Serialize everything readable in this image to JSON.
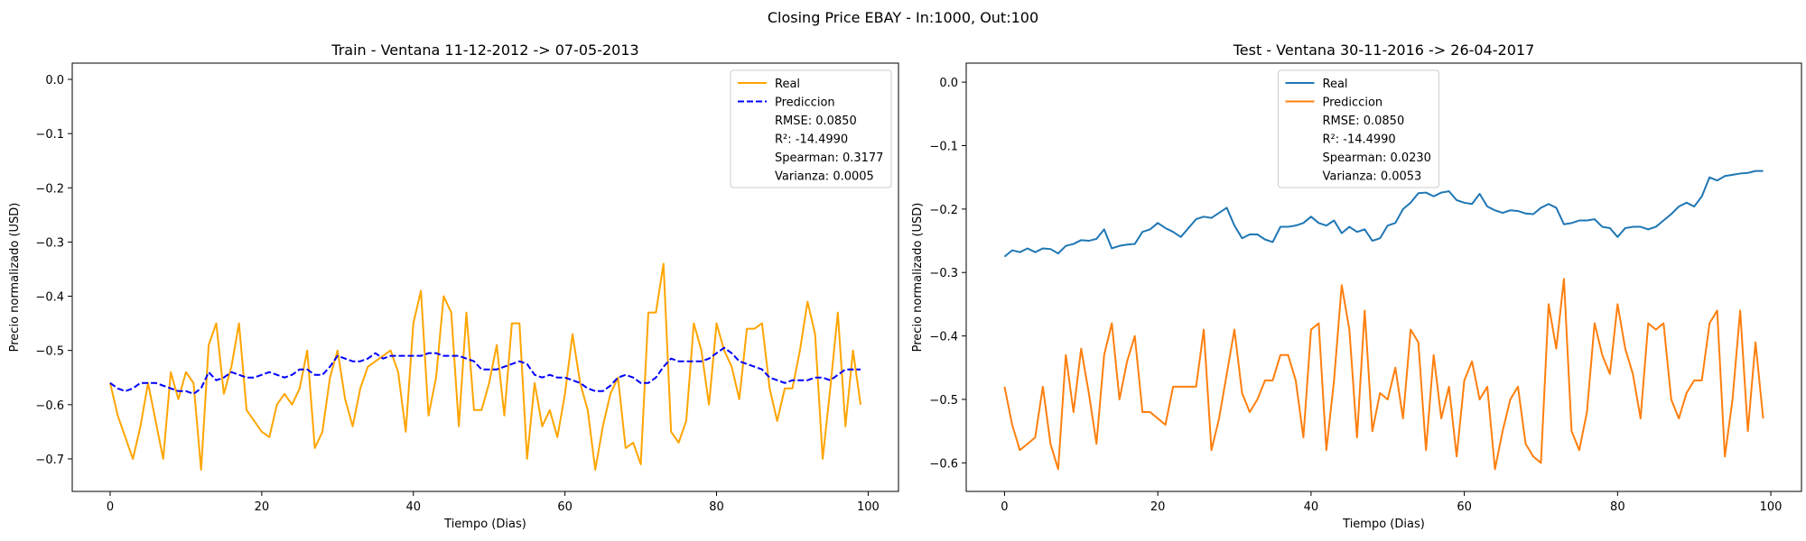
{
  "figure": {
    "suptitle": "Closing Price EBAY - In:1000, Out:100"
  },
  "chart_data": [
    {
      "type": "line",
      "title": "Train - Ventana 11-12-2012 -> 07-05-2013",
      "xlabel": "Tiempo (Dias)",
      "ylabel": "Precio normalizado (USD)",
      "xlim": [
        -5,
        104
      ],
      "ylim": [
        -0.76,
        0.03
      ],
      "xticks": [
        0,
        20,
        40,
        60,
        80,
        100
      ],
      "xtick_labels": [
        "0",
        "20",
        "40",
        "60",
        "80",
        "100"
      ],
      "yticks": [
        0.0,
        -0.1,
        -0.2,
        -0.3,
        -0.4,
        -0.5,
        -0.6,
        -0.7
      ],
      "ytick_labels": [
        "0.0",
        "−0.1",
        "−0.2",
        "−0.3",
        "−0.4",
        "−0.5",
        "−0.6",
        "−0.7"
      ],
      "grid": false,
      "legend_position": "top-right",
      "series": [
        {
          "name": "Real",
          "color": "#FFA500",
          "dash": "solid",
          "values": [
            -0.56,
            -0.62,
            -0.66,
            -0.7,
            -0.64,
            -0.56,
            -0.63,
            -0.7,
            -0.54,
            -0.59,
            -0.54,
            -0.56,
            -0.72,
            -0.49,
            -0.45,
            -0.58,
            -0.53,
            -0.45,
            -0.61,
            -0.63,
            -0.65,
            -0.66,
            -0.6,
            -0.58,
            -0.6,
            -0.57,
            -0.5,
            -0.68,
            -0.65,
            -0.55,
            -0.5,
            -0.59,
            -0.64,
            -0.57,
            -0.53,
            -0.52,
            -0.51,
            -0.5,
            -0.54,
            -0.65,
            -0.45,
            -0.39,
            -0.62,
            -0.55,
            -0.4,
            -0.43,
            -0.64,
            -0.43,
            -0.61,
            -0.61,
            -0.56,
            -0.49,
            -0.62,
            -0.45,
            -0.45,
            -0.7,
            -0.56,
            -0.64,
            -0.61,
            -0.66,
            -0.58,
            -0.47,
            -0.56,
            -0.61,
            -0.72,
            -0.64,
            -0.58,
            -0.55,
            -0.68,
            -0.67,
            -0.71,
            -0.43,
            -0.43,
            -0.34,
            -0.65,
            -0.67,
            -0.63,
            -0.45,
            -0.5,
            -0.6,
            -0.45,
            -0.5,
            -0.53,
            -0.59,
            -0.46,
            -0.46,
            -0.45,
            -0.57,
            -0.63,
            -0.57,
            -0.57,
            -0.5,
            -0.41,
            -0.47,
            -0.7,
            -0.57,
            -0.43,
            -0.64,
            -0.5,
            -0.6
          ]
        },
        {
          "name": "Prediccion",
          "color": "#0000FF",
          "dash": "dashed",
          "values": [
            -0.56,
            -0.57,
            -0.575,
            -0.57,
            -0.56,
            -0.56,
            -0.56,
            -0.565,
            -0.57,
            -0.575,
            -0.575,
            -0.58,
            -0.57,
            -0.54,
            -0.555,
            -0.55,
            -0.54,
            -0.545,
            -0.55,
            -0.55,
            -0.545,
            -0.54,
            -0.545,
            -0.55,
            -0.545,
            -0.535,
            -0.535,
            -0.545,
            -0.545,
            -0.53,
            -0.51,
            -0.515,
            -0.52,
            -0.52,
            -0.515,
            -0.505,
            -0.515,
            -0.51,
            -0.51,
            -0.51,
            -0.51,
            -0.51,
            -0.505,
            -0.505,
            -0.51,
            -0.51,
            -0.51,
            -0.515,
            -0.52,
            -0.535,
            -0.535,
            -0.535,
            -0.53,
            -0.525,
            -0.52,
            -0.525,
            -0.545,
            -0.55,
            -0.545,
            -0.55,
            -0.55,
            -0.555,
            -0.56,
            -0.57,
            -0.575,
            -0.575,
            -0.565,
            -0.55,
            -0.545,
            -0.55,
            -0.56,
            -0.56,
            -0.55,
            -0.53,
            -0.515,
            -0.52,
            -0.52,
            -0.52,
            -0.52,
            -0.515,
            -0.505,
            -0.495,
            -0.505,
            -0.52,
            -0.525,
            -0.53,
            -0.535,
            -0.55,
            -0.555,
            -0.56,
            -0.555,
            -0.555,
            -0.555,
            -0.55,
            -0.55,
            -0.555,
            -0.545,
            -0.535,
            -0.535,
            -0.535
          ]
        }
      ],
      "legend_stats": [
        "RMSE: 0.0850",
        "R²: -14.4990",
        "Spearman: 0.3177",
        "Varianza: 0.0005"
      ]
    },
    {
      "type": "line",
      "title": "Test - Ventana 30-11-2016 -> 26-04-2017",
      "xlabel": "Tiempo (Dias)",
      "ylabel": "Precio normalizado (USD)",
      "xlim": [
        -5,
        104
      ],
      "ylim": [
        -0.645,
        0.03
      ],
      "xticks": [
        0,
        20,
        40,
        60,
        80,
        100
      ],
      "xtick_labels": [
        "0",
        "20",
        "40",
        "60",
        "80",
        "100"
      ],
      "yticks": [
        0.0,
        -0.1,
        -0.2,
        -0.3,
        -0.4,
        -0.5,
        -0.6
      ],
      "ytick_labels": [
        "0.0",
        "−0.1",
        "−0.2",
        "−0.3",
        "−0.4",
        "−0.5",
        "−0.6"
      ],
      "grid": false,
      "legend_position": "upper-center",
      "series": [
        {
          "name": "Real",
          "color": "#1F77B4",
          "dash": "solid",
          "values": [
            -0.275,
            -0.265,
            -0.268,
            -0.262,
            -0.268,
            -0.262,
            -0.263,
            -0.27,
            -0.258,
            -0.255,
            -0.249,
            -0.25,
            -0.247,
            -0.232,
            -0.262,
            -0.258,
            -0.256,
            -0.255,
            -0.236,
            -0.232,
            -0.222,
            -0.23,
            -0.236,
            -0.244,
            -0.23,
            -0.216,
            -0.212,
            -0.214,
            -0.206,
            -0.198,
            -0.226,
            -0.246,
            -0.24,
            -0.24,
            -0.248,
            -0.252,
            -0.228,
            -0.228,
            -0.226,
            -0.222,
            -0.212,
            -0.222,
            -0.226,
            -0.218,
            -0.238,
            -0.228,
            -0.236,
            -0.232,
            -0.25,
            -0.246,
            -0.226,
            -0.222,
            -0.2,
            -0.19,
            -0.175,
            -0.174,
            -0.18,
            -0.174,
            -0.172,
            -0.186,
            -0.19,
            -0.192,
            -0.176,
            -0.196,
            -0.202,
            -0.206,
            -0.202,
            -0.203,
            -0.207,
            -0.208,
            -0.198,
            -0.192,
            -0.198,
            -0.224,
            -0.222,
            -0.218,
            -0.218,
            -0.216,
            -0.228,
            -0.23,
            -0.244,
            -0.23,
            -0.228,
            -0.228,
            -0.232,
            -0.228,
            -0.218,
            -0.208,
            -0.196,
            -0.19,
            -0.196,
            -0.18,
            -0.15,
            -0.155,
            -0.148,
            -0.146,
            -0.144,
            -0.143,
            -0.14,
            -0.14
          ]
        },
        {
          "name": "Prediccion",
          "color": "#FF7F0E",
          "dash": "solid",
          "values": [
            -0.48,
            -0.54,
            -0.58,
            -0.57,
            -0.56,
            -0.48,
            -0.57,
            -0.61,
            -0.43,
            -0.52,
            -0.42,
            -0.49,
            -0.57,
            -0.43,
            -0.38,
            -0.5,
            -0.44,
            -0.4,
            -0.52,
            -0.52,
            -0.53,
            -0.54,
            -0.48,
            -0.48,
            -0.48,
            -0.48,
            -0.39,
            -0.58,
            -0.53,
            -0.46,
            -0.39,
            -0.49,
            -0.52,
            -0.5,
            -0.47,
            -0.47,
            -0.43,
            -0.43,
            -0.47,
            -0.56,
            -0.39,
            -0.38,
            -0.58,
            -0.47,
            -0.32,
            -0.39,
            -0.56,
            -0.36,
            -0.55,
            -0.49,
            -0.5,
            -0.45,
            -0.53,
            -0.39,
            -0.41,
            -0.58,
            -0.43,
            -0.53,
            -0.48,
            -0.59,
            -0.47,
            -0.44,
            -0.5,
            -0.48,
            -0.61,
            -0.55,
            -0.5,
            -0.48,
            -0.57,
            -0.59,
            -0.6,
            -0.35,
            -0.42,
            -0.31,
            -0.55,
            -0.58,
            -0.52,
            -0.38,
            -0.43,
            -0.46,
            -0.35,
            -0.42,
            -0.46,
            -0.53,
            -0.38,
            -0.39,
            -0.38,
            -0.5,
            -0.53,
            -0.49,
            -0.47,
            -0.47,
            -0.38,
            -0.36,
            -0.59,
            -0.5,
            -0.36,
            -0.55,
            -0.41,
            -0.53
          ]
        }
      ],
      "legend_stats": [
        "RMSE: 0.0850",
        "R²: -14.4990",
        "Spearman: 0.0230",
        "Varianza: 0.0053"
      ]
    }
  ]
}
